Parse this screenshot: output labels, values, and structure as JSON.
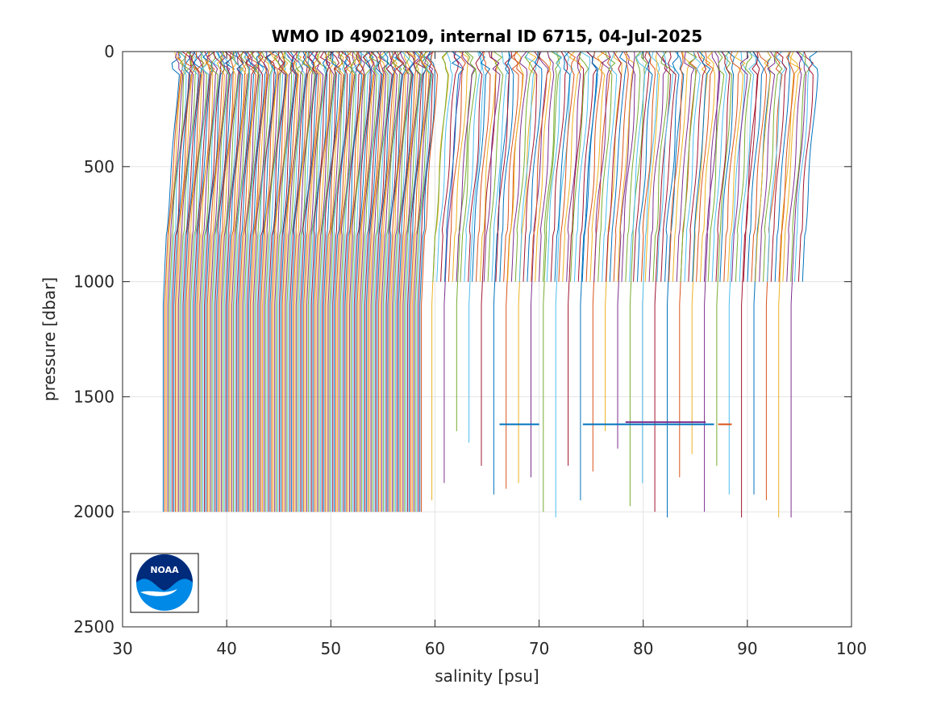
{
  "chart_data": {
    "type": "line",
    "title": "WMO ID 4902109, internal ID 6715, 04-Jul-2025",
    "xlabel": "salinity [psu]",
    "ylabel": "pressure [dbar]",
    "xlim": [
      30,
      100
    ],
    "ylim": [
      0,
      2500
    ],
    "y_reversed": true,
    "grid": true,
    "xticks": [
      30,
      40,
      50,
      60,
      70,
      80,
      90,
      100
    ],
    "yticks": [
      0,
      500,
      1000,
      1500,
      2000,
      2500
    ],
    "xtick_labels": [
      "30",
      "40",
      "50",
      "60",
      "70",
      "80",
      "90",
      "100"
    ],
    "ytick_labels": [
      "0",
      "500",
      "1000",
      "1500",
      "2000",
      "2500"
    ],
    "profile_description": "Waterfall of salinity profiles, each successive profile offset in salinity",
    "profile_groups": [
      {
        "name": "",
        "count": 170,
        "x_start": 36.2,
        "x_end": 61.0,
        "max_pressure": 2000
      },
      {
        "name": "",
        "count": 30,
        "x_start": 62.0,
        "x_end": 96.5,
        "max_pressure": 1800
      },
      {
        "name": "",
        "count": 95,
        "x_start": 62.0,
        "x_end": 97.5,
        "max_pressure": 1000
      }
    ],
    "horizontal_segments": [
      {
        "x": [
          66.2,
          70.0
        ],
        "y": 1620,
        "color": "#0072bd"
      },
      {
        "x": [
          74.2,
          86.8
        ],
        "y": 1620,
        "color": "#0072bd"
      },
      {
        "x": [
          78.3,
          86.0
        ],
        "y": 1610,
        "color": "#7e2f8e"
      },
      {
        "x": [
          87.2,
          88.5
        ],
        "y": 1620,
        "color": "#d95319"
      }
    ],
    "colors": [
      "#0072bd",
      "#d95319",
      "#edb120",
      "#7e2f8e",
      "#77ac30",
      "#4dbeee",
      "#a2142f"
    ]
  },
  "logo": {
    "text": "NOAA"
  }
}
